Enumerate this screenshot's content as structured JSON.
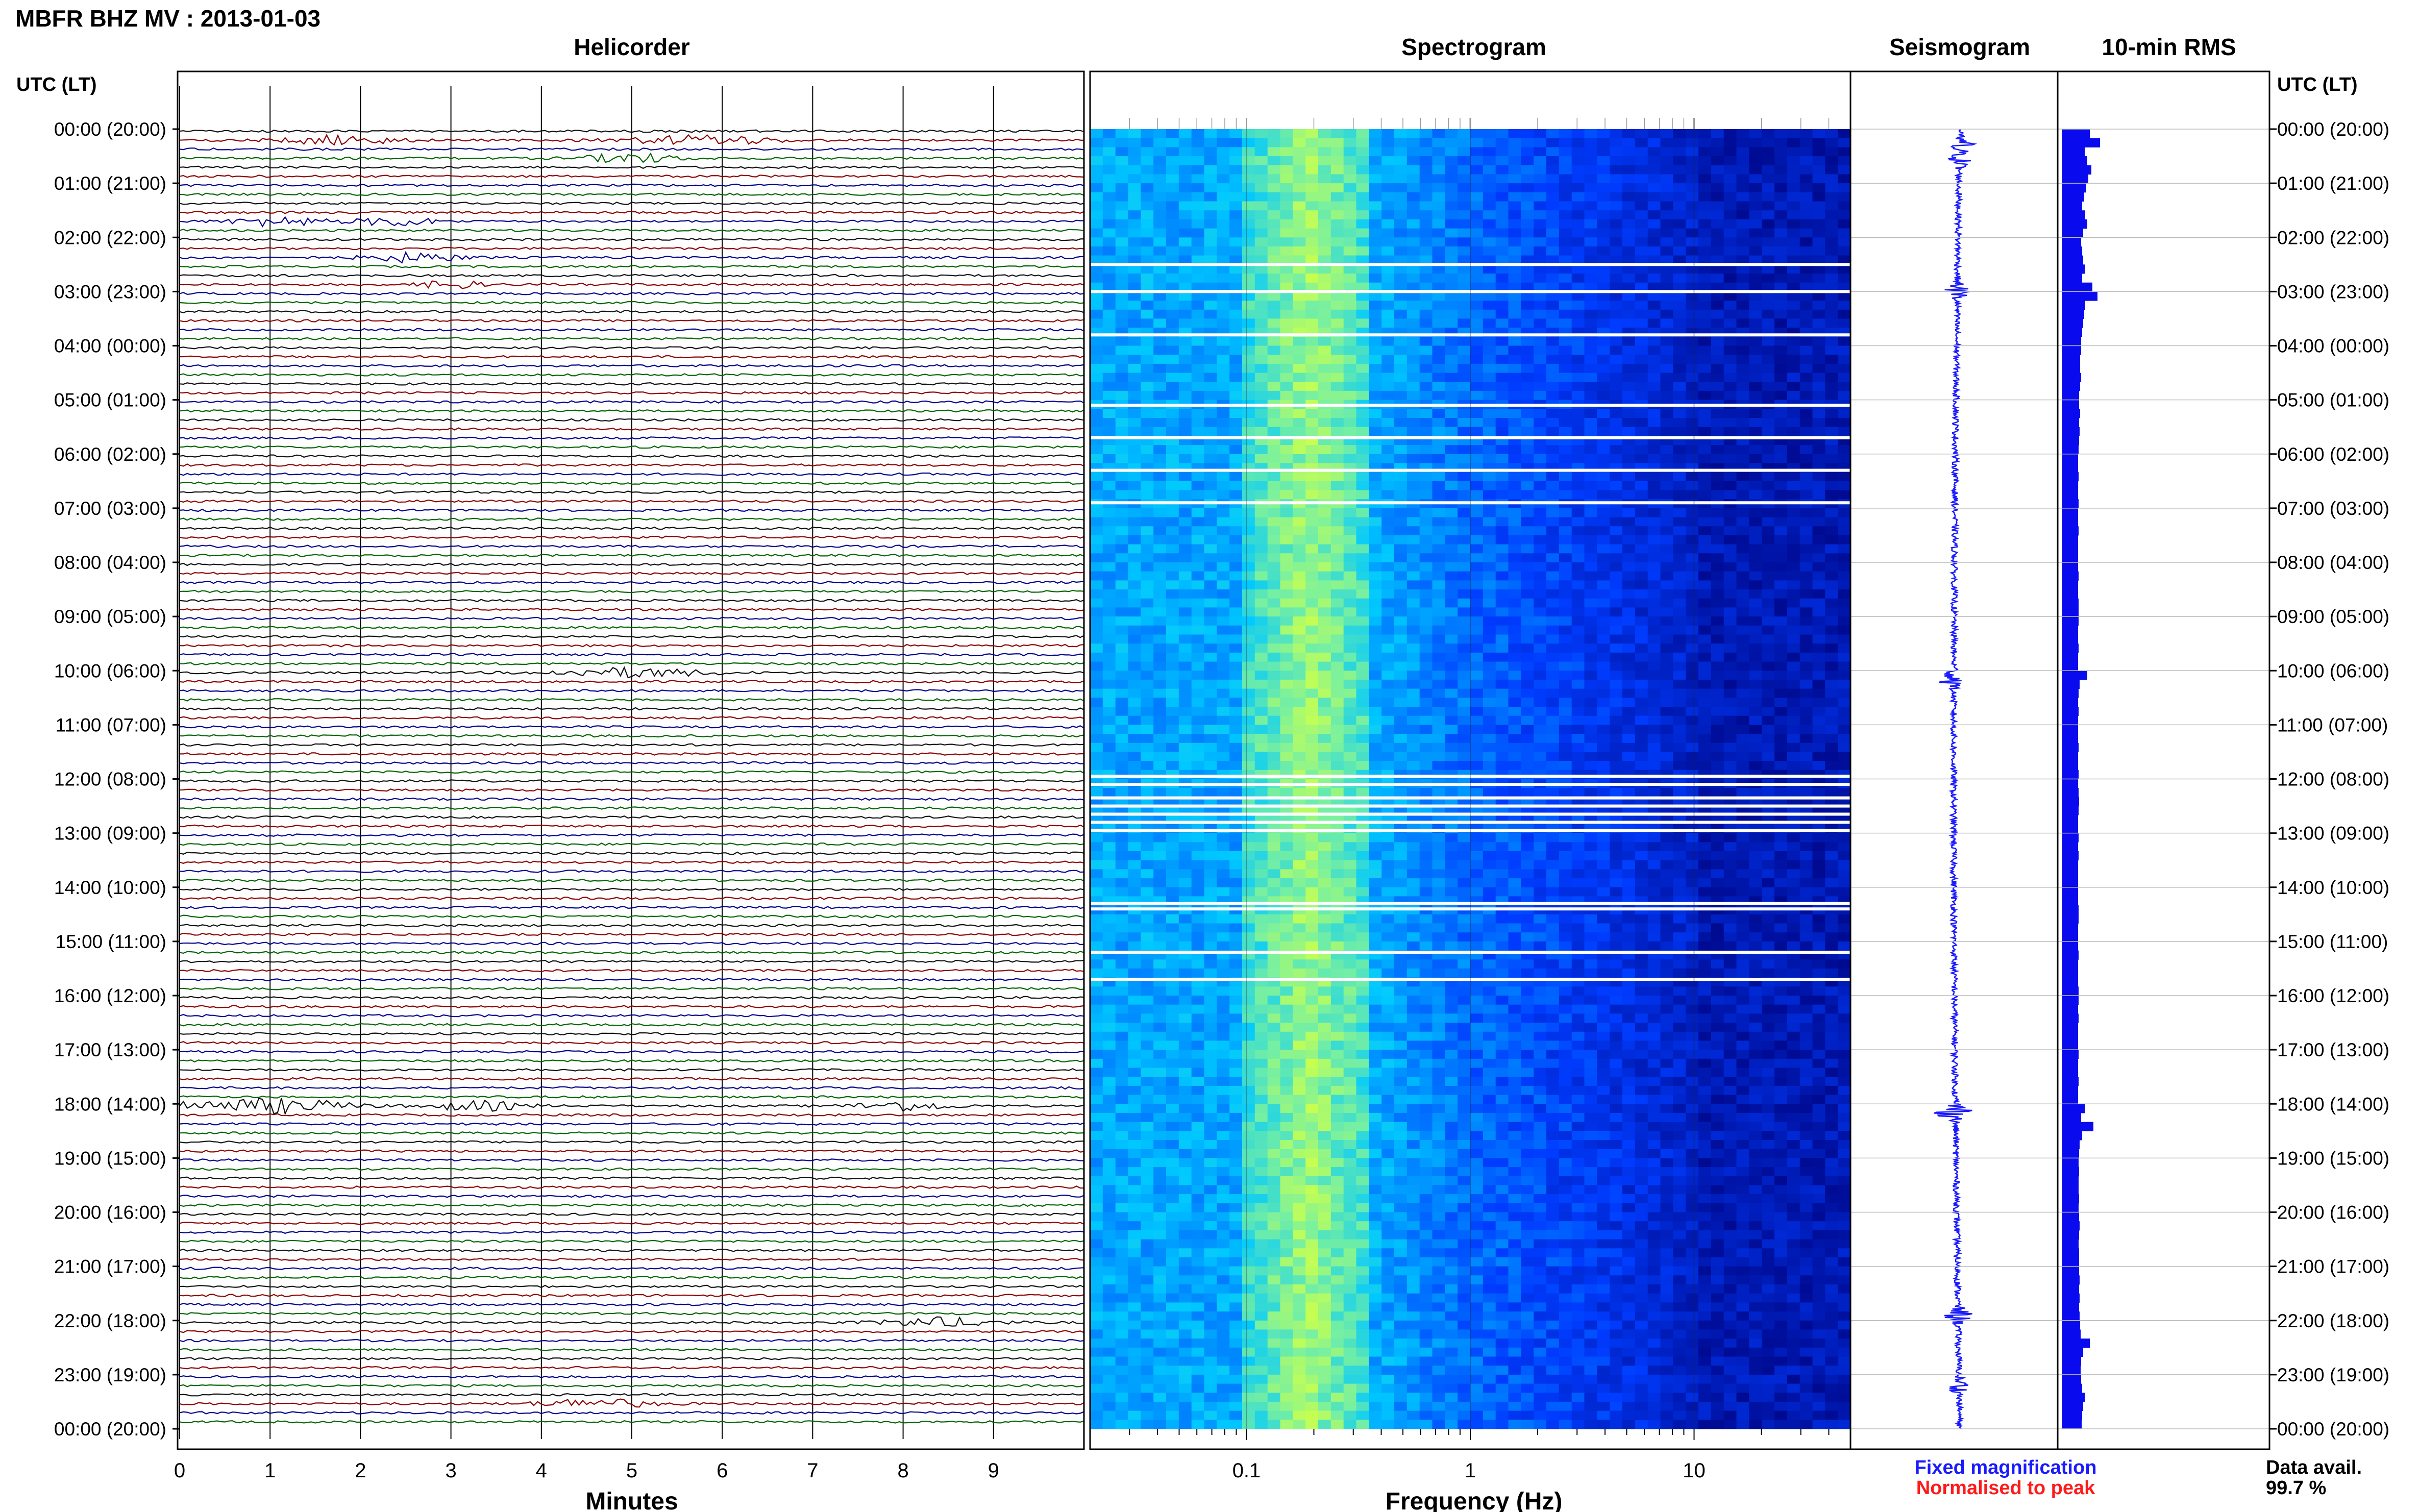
{
  "header": {
    "station_title": "MBFR BHZ MV : 2013-01-03",
    "panels": {
      "helicorder": "Helicorder",
      "spectrogram": "Spectrogram",
      "seismogram": "Seismogram",
      "rms": "10-min RMS"
    },
    "utc_left": "UTC (LT)",
    "utc_right": "UTC (LT)"
  },
  "time_labels": [
    "00:00 (20:00)",
    "01:00 (21:00)",
    "02:00 (22:00)",
    "03:00 (23:00)",
    "04:00 (00:00)",
    "05:00 (01:00)",
    "06:00 (02:00)",
    "07:00 (03:00)",
    "08:00 (04:00)",
    "09:00 (05:00)",
    "10:00 (06:00)",
    "11:00 (07:00)",
    "12:00 (08:00)",
    "13:00 (09:00)",
    "14:00 (10:00)",
    "15:00 (11:00)",
    "16:00 (12:00)",
    "17:00 (13:00)",
    "18:00 (14:00)",
    "19:00 (15:00)",
    "20:00 (16:00)",
    "21:00 (17:00)",
    "22:00 (18:00)",
    "23:00 (19:00)",
    "00:00 (20:00)"
  ],
  "footer": {
    "fixed_magnification": "Fixed magnification",
    "normalised_to_peak": "Normalised to peak",
    "data_avail_label": "Data avail.",
    "data_avail_value": "99.7 %"
  },
  "colors": {
    "trace_black": "#111111",
    "trace_red": "#8b0000",
    "trace_blue": "#00008b",
    "trace_green": "#006400",
    "seismogram": "#1a1aff",
    "rms_bar": "#0a0aee",
    "spectrogram_low": "#00007a",
    "spectrogram_mid": "#00c8ff",
    "spectrogram_high": "#c8ff50"
  },
  "chart_data": [
    {
      "type": "line",
      "panel": "helicorder",
      "title": "Helicorder",
      "xlabel": "Minutes",
      "x_ticks": [
        "0",
        "1",
        "2",
        "3",
        "4",
        "5",
        "6",
        "7",
        "8",
        "9"
      ],
      "xlim": [
        0,
        10
      ],
      "rows_per_hour": 6,
      "row_minutes": 10,
      "trace_color_cycle": [
        "#111111",
        "#8b0000",
        "#00008b",
        "#006400"
      ],
      "note": "Traces drawn as continuous seismic noise; data gaps shown as white breaks."
    },
    {
      "type": "heatmap",
      "panel": "spectrogram",
      "title": "Spectrogram",
      "xlabel": "Frequency (Hz)",
      "x_scale": "log",
      "xlim": [
        0.02,
        50
      ],
      "x_tick_labels": [
        "0.1",
        "1",
        "10"
      ],
      "x_tick_values": [
        0.1,
        1,
        10
      ],
      "gap_rows_hours": [
        2.5,
        3.0,
        3.8,
        5.1,
        5.7,
        6.3,
        6.9,
        11.95,
        12.1,
        12.35,
        12.5,
        12.65,
        12.8,
        12.95,
        14.3,
        14.4,
        15.2,
        15.7
      ]
    },
    {
      "type": "line",
      "panel": "seismogram",
      "title": "Seismogram",
      "note": "Compressed 24-hour trace, amplitude bursts near 00:30, 03:00, 10:10, 18:10, 22:00, 23:10"
    },
    {
      "type": "bar",
      "panel": "rms",
      "title": "10-min RMS",
      "orientation": "horizontal",
      "unit_note": "relative amplitude, 0-1",
      "values": [
        0.55,
        0.75,
        0.45,
        0.5,
        0.58,
        0.52,
        0.48,
        0.44,
        0.4,
        0.46,
        0.5,
        0.42,
        0.38,
        0.4,
        0.42,
        0.45,
        0.4,
        0.6,
        0.7,
        0.46,
        0.44,
        0.42,
        0.4,
        0.38,
        0.38,
        0.36,
        0.36,
        0.38,
        0.36,
        0.34,
        0.34,
        0.36,
        0.34,
        0.35,
        0.34,
        0.33,
        0.32,
        0.32,
        0.33,
        0.32,
        0.32,
        0.33,
        0.32,
        0.32,
        0.33,
        0.32,
        0.32,
        0.32,
        0.32,
        0.33,
        0.32,
        0.32,
        0.33,
        0.33,
        0.33,
        0.32,
        0.32,
        0.33,
        0.32,
        0.32,
        0.5,
        0.35,
        0.33,
        0.32,
        0.33,
        0.32,
        0.32,
        0.32,
        0.33,
        0.32,
        0.32,
        0.33,
        0.32,
        0.33,
        0.34,
        0.33,
        0.32,
        0.32,
        0.33,
        0.32,
        0.33,
        0.32,
        0.32,
        0.32,
        0.32,
        0.32,
        0.33,
        0.33,
        0.32,
        0.32,
        0.32,
        0.33,
        0.32,
        0.32,
        0.32,
        0.33,
        0.33,
        0.32,
        0.33,
        0.32,
        0.32,
        0.32,
        0.33,
        0.32,
        0.32,
        0.33,
        0.32,
        0.32,
        0.45,
        0.38,
        0.62,
        0.4,
        0.35,
        0.34,
        0.33,
        0.34,
        0.33,
        0.33,
        0.34,
        0.33,
        0.34,
        0.35,
        0.34,
        0.33,
        0.34,
        0.34,
        0.34,
        0.35,
        0.34,
        0.35,
        0.34,
        0.35,
        0.36,
        0.37,
        0.55,
        0.42,
        0.38,
        0.37,
        0.38,
        0.4,
        0.45,
        0.42,
        0.4,
        0.39
      ]
    }
  ]
}
